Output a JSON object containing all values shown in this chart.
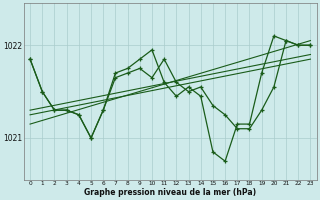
{
  "title": "Graphe pression niveau de la mer (hPa)",
  "background_color": "#ceeaea",
  "grid_color": "#aacccc",
  "line_color": "#1a5c1a",
  "x_labels": [
    "0",
    "1",
    "2",
    "3",
    "4",
    "5",
    "6",
    "7",
    "8",
    "9",
    "10",
    "11",
    "12",
    "13",
    "14",
    "15",
    "16",
    "17",
    "18",
    "19",
    "20",
    "21",
    "22",
    "23"
  ],
  "ylim": [
    1020.55,
    1022.45
  ],
  "yticks": [
    1021,
    1022
  ],
  "main_y": [
    1021.85,
    1021.5,
    1021.3,
    1021.3,
    1021.25,
    1021.0,
    1021.3,
    1021.7,
    1021.75,
    1021.85,
    1021.95,
    1021.6,
    1021.45,
    1021.55,
    1021.45,
    1020.85,
    1020.75,
    1021.15,
    1021.15,
    1021.7,
    1022.1,
    1022.05,
    1022.0,
    1022.0
  ],
  "line2_y": [
    1021.85,
    1021.5,
    1021.3,
    1021.3,
    1021.25,
    1021.0,
    1021.3,
    1021.65,
    1021.7,
    1021.75,
    1021.65,
    1021.85,
    1021.6,
    1021.5,
    1021.55,
    1021.35,
    1021.25,
    1021.1,
    1021.1,
    1021.3,
    1021.55,
    1022.05,
    1022.0,
    1022.0
  ],
  "trend_lines": [
    {
      "x": [
        0,
        23
      ],
      "y": [
        1021.25,
        1021.85
      ]
    },
    {
      "x": [
        0,
        23
      ],
      "y": [
        1021.3,
        1021.9
      ]
    },
    {
      "x": [
        0,
        23
      ],
      "y": [
        1021.15,
        1022.05
      ]
    }
  ]
}
